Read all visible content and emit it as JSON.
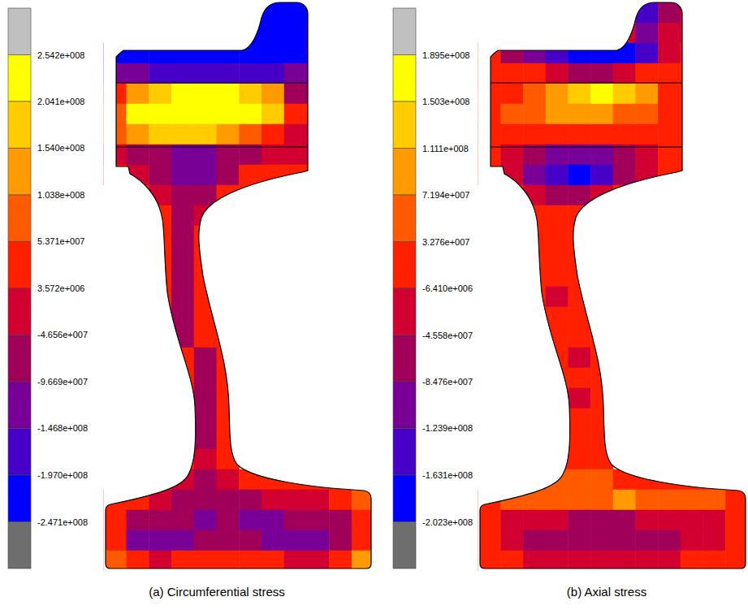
{
  "chart_data": [
    {
      "type": "contour",
      "title": "(a) Circumferential stress",
      "colorbar": {
        "range": [
          -297230000.0,
          304330000.0
        ],
        "ticks": [
          {
            "value": 254200000.0,
            "label": "2.542e+008"
          },
          {
            "value": 204100000.0,
            "label": "2.041e+008"
          },
          {
            "value": 154000000.0,
            "label": "1.540e+008"
          },
          {
            "value": 103800000.0,
            "label": "1.038e+008"
          },
          {
            "value": 53710000.0,
            "label": "5.371e+007"
          },
          {
            "value": 3572000.0,
            "label": "3.572e+006"
          },
          {
            "value": -46560000.0,
            "label": "-4.656e+007"
          },
          {
            "value": -96690000.0,
            "label": "-9.669e+007"
          },
          {
            "value": -146800000.0,
            "label": "-1.468e+008"
          },
          {
            "value": -197000000.0,
            "label": "-1.970e+008"
          },
          {
            "value": -247100000.0,
            "label": "-2.471e+008"
          }
        ],
        "colors": [
          "#c0c0c0",
          "#ffff00",
          "#ffcc00",
          "#ff9a00",
          "#ff5a00",
          "#ff2000",
          "#d20030",
          "#a0005a",
          "#780096",
          "#4600c8",
          "#0000ff",
          "#6e6e6e"
        ]
      },
      "cells": [
        [
          null,
          null,
          null,
          null,
          null,
          null,
          -200000000.0,
          -230000000.0,
          -230000000.0,
          -200000000.0,
          null,
          null
        ],
        [
          null,
          null,
          null,
          null,
          null,
          null,
          -220000000.0,
          -230000000.0,
          -210000000.0,
          -190000000.0,
          null,
          null
        ],
        [
          -200000000.0,
          -220000000.0,
          -220000000.0,
          -220000000.0,
          -220000000.0,
          -220000000.0,
          -230000000.0,
          -230000000.0,
          -200000000.0,
          -180000000.0,
          null,
          null
        ],
        [
          -100000000.0,
          -130000000.0,
          -150000000.0,
          -150000000.0,
          -150000000.0,
          -160000000.0,
          -170000000.0,
          -190000000.0,
          -120000000.0,
          -100000000.0,
          null,
          null
        ],
        [
          50000000.0,
          120000000.0,
          180000000.0,
          210000000.0,
          220000000.0,
          210000000.0,
          180000000.0,
          120000000.0,
          -60000000.0,
          -60000000.0,
          null,
          null
        ],
        [
          100000000.0,
          210000000.0,
          230000000.0,
          240000000.0,
          235000000.0,
          230000000.0,
          210000000.0,
          160000000.0,
          20000000.0,
          20000000.0,
          null,
          null
        ],
        [
          60000000.0,
          130000000.0,
          160000000.0,
          170000000.0,
          160000000.0,
          140000000.0,
          100000000.0,
          50000000.0,
          0,
          0,
          null,
          null
        ],
        [
          -30000000.0,
          -60000000.0,
          -90000000.0,
          -120000000.0,
          -100000000.0,
          -70000000.0,
          -50000000.0,
          -30000000.0,
          -20000000.0,
          -20000000.0,
          null,
          null
        ],
        [
          20000000.0,
          -20000000.0,
          -80000000.0,
          -130000000.0,
          -110000000.0,
          -50000000.0,
          10000000.0,
          30000000.0,
          40000000.0,
          40000000.0,
          null,
          null
        ],
        [
          null,
          30000000.0,
          -20000000.0,
          -80000000.0,
          -60000000.0,
          20000000.0,
          40000000.0,
          null,
          null,
          null,
          null,
          null
        ],
        [
          null,
          null,
          20000000.0,
          -60000000.0,
          -20000000.0,
          40000000.0,
          null,
          null,
          null,
          null,
          null,
          null
        ],
        [
          null,
          null,
          30000000.0,
          -70000000.0,
          10000000.0,
          null,
          null,
          null,
          null,
          null,
          null,
          null
        ],
        [
          null,
          null,
          30000000.0,
          -80000000.0,
          20000000.0,
          null,
          null,
          null,
          null,
          null,
          null,
          null
        ],
        [
          null,
          null,
          30000000.0,
          -60000000.0,
          30000000.0,
          null,
          null,
          null,
          null,
          null,
          null,
          null
        ],
        [
          null,
          null,
          30000000.0,
          -60000000.0,
          30000000.0,
          null,
          null,
          null,
          null,
          null,
          null,
          null
        ],
        [
          null,
          null,
          30000000.0,
          -60000000.0,
          30000000.0,
          null,
          null,
          null,
          null,
          null,
          null,
          null
        ],
        [
          null,
          null,
          30000000.0,
          -50000000.0,
          20000000.0,
          30000000.0,
          null,
          null,
          null,
          null,
          null,
          null
        ],
        [
          null,
          null,
          null,
          10000000.0,
          -50000000.0,
          30000000.0,
          null,
          null,
          null,
          null,
          null,
          null
        ],
        [
          null,
          null,
          null,
          30000000.0,
          -50000000.0,
          30000000.0,
          null,
          null,
          null,
          null,
          null,
          null
        ],
        [
          null,
          null,
          null,
          30000000.0,
          -50000000.0,
          30000000.0,
          null,
          null,
          null,
          null,
          null,
          null
        ],
        [
          null,
          null,
          null,
          30000000.0,
          -50000000.0,
          30000000.0,
          null,
          null,
          null,
          null,
          null,
          null
        ],
        [
          null,
          null,
          null,
          30000000.0,
          -50000000.0,
          30000000.0,
          null,
          null,
          null,
          null,
          null,
          null
        ],
        [
          null,
          null,
          null,
          20000000.0,
          -30000000.0,
          30000000.0,
          null,
          null,
          null,
          null,
          null,
          null
        ],
        [
          null,
          null,
          30000000.0,
          -20000000.0,
          -50000000.0,
          -20000000.0,
          20000000.0,
          30000000.0,
          30000000.0,
          40000000.0,
          40000000.0,
          50000000.0
        ],
        [
          50000000.0,
          20000000.0,
          -30000000.0,
          -60000000.0,
          -80000000.0,
          -70000000.0,
          -50000000.0,
          -30000000.0,
          -20000000.0,
          0,
          20000000.0,
          60000000.0
        ],
        [
          30000000.0,
          -60000000.0,
          -90000000.0,
          -80000000.0,
          -110000000.0,
          -90000000.0,
          -130000000.0,
          -100000000.0,
          -80000000.0,
          -70000000.0,
          -50000000.0,
          30000000.0
        ],
        [
          20000000.0,
          -120000000.0,
          -130000000.0,
          -100000000.0,
          -90000000.0,
          -80000000.0,
          -90000000.0,
          -100000000.0,
          -120000000.0,
          -130000000.0,
          -80000000.0,
          20000000.0
        ],
        [
          90000000.0,
          40000000.0,
          -10000000.0,
          10000000.0,
          30000000.0,
          40000000.0,
          40000000.0,
          30000000.0,
          0,
          -10000000.0,
          40000000.0,
          110000000.0
        ]
      ]
    },
    {
      "type": "contour",
      "title": "(b) Axial stress",
      "colorbar": {
        "range": [
          -241480000.0,
          228680000.0
        ],
        "ticks": [
          {
            "value": 189500000.0,
            "label": "1.895e+008"
          },
          {
            "value": 150300000.0,
            "label": "1.503e+008"
          },
          {
            "value": 111100000.0,
            "label": "1.111e+008"
          },
          {
            "value": 71940000.0,
            "label": "7.194e+007"
          },
          {
            "value": 32760000.0,
            "label": "3.276e+007"
          },
          {
            "value": -6410000.0,
            "label": "-6.410e+006"
          },
          {
            "value": -45580000.0,
            "label": "-4.558e+007"
          },
          {
            "value": -84760000.0,
            "label": "-8.476e+007"
          },
          {
            "value": -123900000.0,
            "label": "-1.239e+008"
          },
          {
            "value": -163100000.0,
            "label": "-1.631e+008"
          },
          {
            "value": -202300000.0,
            "label": "-2.023e+008"
          }
        ],
        "colors": [
          "#c0c0c0",
          "#ffff00",
          "#ffcc00",
          "#ff9a00",
          "#ff5a00",
          "#ff2000",
          "#d20030",
          "#a0005a",
          "#780096",
          "#4600c8",
          "#0000ff",
          "#6e6e6e"
        ]
      },
      "cells": [
        [
          null,
          null,
          null,
          null,
          null,
          null,
          -30000000.0,
          -130000000.0,
          -50000000.0,
          -30000000.0,
          null,
          null
        ],
        [
          null,
          null,
          null,
          null,
          null,
          null,
          -30000000.0,
          -120000000.0,
          -30000000.0,
          -20000000.0,
          null,
          null
        ],
        [
          0,
          -50000000.0,
          -100000000.0,
          -150000000.0,
          -170000000.0,
          -180000000.0,
          -180000000.0,
          -140000000.0,
          -30000000.0,
          0,
          null,
          null
        ],
        [
          10000000.0,
          20000000.0,
          0,
          -30000000.0,
          -50000000.0,
          -60000000.0,
          -40000000.0,
          0,
          10000000.0,
          10000000.0,
          null,
          null
        ],
        [
          10000000.0,
          30000000.0,
          60000000.0,
          90000000.0,
          120000000.0,
          155000000.0,
          130000000.0,
          80000000.0,
          20000000.0,
          10000000.0,
          null,
          null
        ],
        [
          10000000.0,
          40000000.0,
          70000000.0,
          90000000.0,
          100000000.0,
          90000000.0,
          70000000.0,
          40000000.0,
          10000000.0,
          10000000.0,
          null,
          null
        ],
        [
          10000000.0,
          10000000.0,
          20000000.0,
          30000000.0,
          30000000.0,
          30000000.0,
          20000000.0,
          10000000.0,
          0,
          0,
          null,
          null
        ],
        [
          0,
          -30000000.0,
          -70000000.0,
          -100000000.0,
          -110000000.0,
          -90000000.0,
          -60000000.0,
          -30000000.0,
          0,
          0,
          null,
          null
        ],
        [
          10000000.0,
          -40000000.0,
          -110000000.0,
          -150000000.0,
          -165000000.0,
          -130000000.0,
          -60000000.0,
          -10000000.0,
          10000000.0,
          10000000.0,
          null,
          null
        ],
        [
          null,
          10000000.0,
          -20000000.0,
          -60000000.0,
          -50000000.0,
          -10000000.0,
          10000000.0,
          null,
          null,
          null,
          null,
          null
        ],
        [
          null,
          null,
          10000000.0,
          0,
          10000000.0,
          10000000.0,
          null,
          null,
          null,
          null,
          null,
          null
        ],
        [
          null,
          null,
          10000000.0,
          10000000.0,
          10000000.0,
          null,
          null,
          null,
          null,
          null,
          null,
          null
        ],
        [
          null,
          null,
          10000000.0,
          10000000.0,
          10000000.0,
          null,
          null,
          null,
          null,
          null,
          null,
          null
        ],
        [
          null,
          null,
          10000000.0,
          10000000.0,
          10000000.0,
          null,
          null,
          null,
          null,
          null,
          null,
          null
        ],
        [
          null,
          null,
          10000000.0,
          -20000000.0,
          10000000.0,
          null,
          null,
          null,
          null,
          null,
          null,
          null
        ],
        [
          null,
          null,
          10000000.0,
          10000000.0,
          10000000.0,
          null,
          null,
          null,
          null,
          null,
          null,
          null
        ],
        [
          null,
          null,
          10000000.0,
          10000000.0,
          10000000.0,
          10000000.0,
          null,
          null,
          null,
          null,
          null,
          null
        ],
        [
          null,
          null,
          null,
          10000000.0,
          -20000000.0,
          10000000.0,
          null,
          null,
          null,
          null,
          null,
          null
        ],
        [
          null,
          null,
          null,
          10000000.0,
          10000000.0,
          10000000.0,
          null,
          null,
          null,
          null,
          null,
          null
        ],
        [
          null,
          null,
          null,
          10000000.0,
          -20000000.0,
          10000000.0,
          null,
          null,
          null,
          null,
          null,
          null
        ],
        [
          null,
          null,
          null,
          10000000.0,
          10000000.0,
          10000000.0,
          null,
          null,
          null,
          null,
          null,
          null
        ],
        [
          null,
          null,
          null,
          10000000.0,
          10000000.0,
          10000000.0,
          null,
          null,
          null,
          null,
          null,
          null
        ],
        [
          null,
          null,
          null,
          10000000.0,
          10000000.0,
          10000000.0,
          null,
          null,
          null,
          null,
          null,
          null
        ],
        [
          null,
          null,
          20000000.0,
          40000000.0,
          40000000.0,
          40000000.0,
          30000000.0,
          30000000.0,
          20000000.0,
          20000000.0,
          20000000.0,
          30000000.0
        ],
        [
          30000000.0,
          40000000.0,
          50000000.0,
          50000000.0,
          60000000.0,
          60000000.0,
          80000000.0,
          50000000.0,
          40000000.0,
          40000000.0,
          40000000.0,
          30000000.0
        ],
        [
          10000000.0,
          -10000000.0,
          -30000000.0,
          -40000000.0,
          -50000000.0,
          -50000000.0,
          -50000000.0,
          -40000000.0,
          -30000000.0,
          -30000000.0,
          -10000000.0,
          10000000.0
        ],
        [
          0,
          -30000000.0,
          -50000000.0,
          -60000000.0,
          -60000000.0,
          -70000000.0,
          -70000000.0,
          -60000000.0,
          -50000000.0,
          -40000000.0,
          -20000000.0,
          0
        ],
        [
          10000000.0,
          0,
          -10000000.0,
          -20000000.0,
          -20000000.0,
          -20000000.0,
          -20000000.0,
          -10000000.0,
          -10000000.0,
          0,
          0,
          10000000.0
        ]
      ]
    }
  ]
}
